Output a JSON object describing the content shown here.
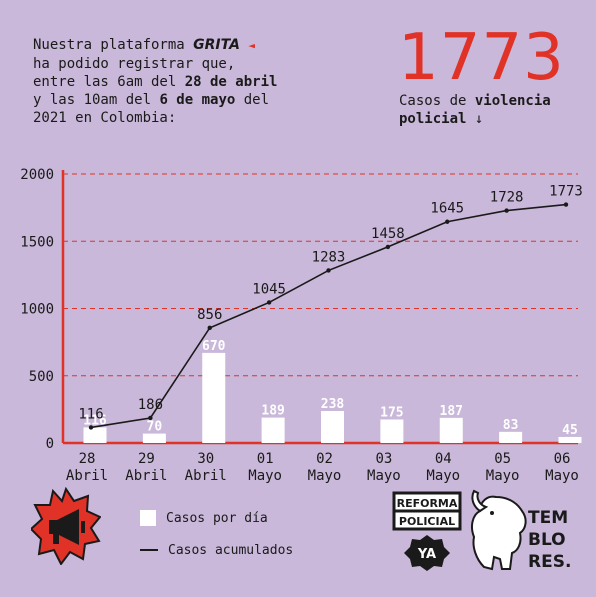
{
  "intro": {
    "line1": "Nuestra plataforma ",
    "brand": "GRITA",
    "line2": "ha podido registrar que,",
    "line3a": "entre las 6am del ",
    "line3b": "28 de abril",
    "line4a": "y las 10am del ",
    "line4b": "6 de mayo",
    "line4c": " del",
    "line5": "2021 en Colombia:"
  },
  "highlight": {
    "total": "1773",
    "caption_a": "Casos de ",
    "caption_b": "violencia policial",
    "arrow": "↓"
  },
  "legend": {
    "bars": "Casos por día",
    "line": "Casos acumulados"
  },
  "logos": {
    "reforma_line1": "REFORMA",
    "reforma_line2": "POLICIAL",
    "reforma_line3": "YA",
    "temblores": [
      "TEM",
      "BLO",
      "RES."
    ]
  },
  "colors": {
    "background": "#c9b8d9",
    "accent": "#e03227",
    "bars": "#ffffff",
    "line": "#1a1a1a"
  },
  "chart_data": {
    "type": "bar",
    "categories": [
      [
        "28",
        "Abril"
      ],
      [
        "29",
        "Abril"
      ],
      [
        "30",
        "Abril"
      ],
      [
        "01",
        "Mayo"
      ],
      [
        "02",
        "Mayo"
      ],
      [
        "03",
        "Mayo"
      ],
      [
        "04",
        "Mayo"
      ],
      [
        "05",
        "Mayo"
      ],
      [
        "06",
        "Mayo"
      ]
    ],
    "series": [
      {
        "name": "Casos por día",
        "type": "bar",
        "values": [
          116,
          70,
          670,
          189,
          238,
          175,
          187,
          83,
          45
        ]
      },
      {
        "name": "Casos acumulados",
        "type": "line",
        "values": [
          116,
          186,
          856,
          1045,
          1283,
          1458,
          1645,
          1728,
          1773
        ]
      }
    ],
    "yticks": [
      0,
      500,
      1000,
      1500,
      2000
    ],
    "ylim": [
      0,
      2000
    ],
    "grid": "dashed horizontal",
    "legend_position": "bottom"
  }
}
